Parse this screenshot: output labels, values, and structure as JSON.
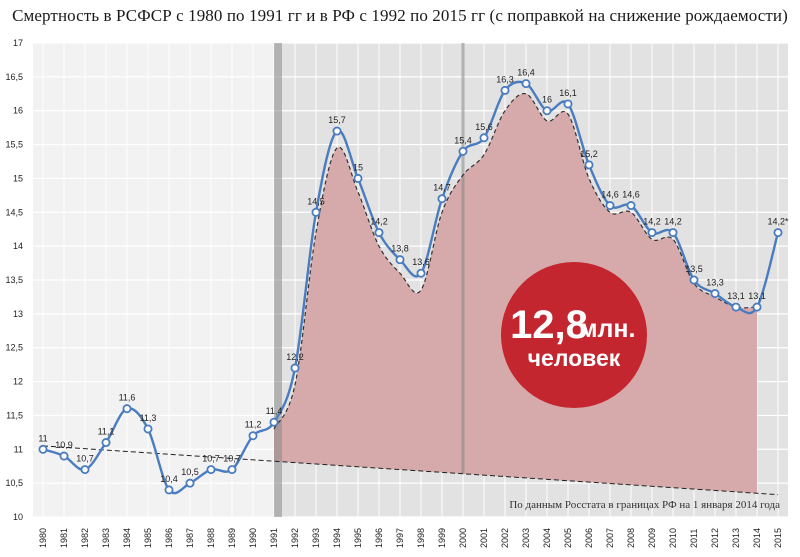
{
  "title": "Смертность в РСФСР с 1980 по 1991 гг и в РФ с 1992 по 2015 гг (с поправкой на снижение рождаемости)",
  "source_note": "По данным Росстата в границах РФ на 1 января 2014 года",
  "badge": {
    "value": "12,8",
    "unit": "млн.",
    "text": "человек",
    "color": "#c3262f"
  },
  "colors": {
    "line": "#4a7cc0",
    "marker_fill": "#ffffff",
    "area_fill": "#d5a5a7",
    "bg_left": "#f2f2f2",
    "bg_right": "#e2e2e2",
    "divider": "#8a8a8a",
    "grid": "#ffffff",
    "trend": "#222222"
  },
  "chart_data": {
    "type": "line",
    "title": "Смертность в РСФСР с 1980 по 1991 гг и в РФ с 1992 по 2015 гг (с поправкой на снижение рождаемости)",
    "xlabel": "",
    "ylabel": "",
    "ylim": [
      10,
      17
    ],
    "yticks": [
      "10",
      "10,5",
      "11",
      "11,5",
      "12",
      "12,5",
      "13",
      "13,5",
      "14",
      "14,5",
      "15",
      "15,5",
      "16",
      "16,5",
      "17"
    ],
    "grid": true,
    "categories": [
      "1980",
      "1981",
      "1982",
      "1983",
      "1984",
      "1985",
      "1986",
      "1987",
      "1988",
      "1989",
      "1990",
      "1991",
      "1992",
      "1993",
      "1994",
      "1995",
      "1996",
      "1997",
      "1998",
      "1999",
      "2000",
      "2001",
      "2002",
      "2003",
      "2004",
      "2005",
      "2006",
      "2007",
      "2008",
      "2009",
      "2010",
      "2011",
      "2012",
      "2013",
      "2014",
      "2015"
    ],
    "series": [
      {
        "values": [
          11,
          10.9,
          10.7,
          11.1,
          11.6,
          11.3,
          10.4,
          10.5,
          10.7,
          10.7,
          11.2,
          11.4,
          12.2,
          14.5,
          15.7,
          15,
          14.2,
          13.8,
          13.6,
          14.7,
          15.4,
          15.6,
          16.3,
          16.4,
          16,
          16.1,
          15.2,
          14.6,
          14.6,
          14.2,
          14.2,
          13.5,
          13.3,
          13.1,
          13.1,
          14.2
        ],
        "labels": [
          "11",
          "10,9",
          "10,7",
          "11,1",
          "11,6",
          "11,3",
          "10,4",
          "10,5",
          "10,7",
          "10,7",
          "11,2",
          "11,4",
          "12,2",
          "14,5",
          "15,7",
          "15",
          "14,2",
          "13,8",
          "13,6",
          "14,7",
          "15,4",
          "15,6",
          "16,3",
          "16,4",
          "16",
          "16,1",
          "15,2",
          "14,6",
          "14,6",
          "14,2",
          "14,2",
          "13,5",
          "13,3",
          "13,1",
          "13,1",
          "14,2*"
        ]
      },
      {
        "x": [
          "1991",
          "1992",
          "1993",
          "1994",
          "1995",
          "1996",
          "1997",
          "1998",
          "1999",
          "2000",
          "2001",
          "2002",
          "2003",
          "2004",
          "2005",
          "2006",
          "2007",
          "2008",
          "2009",
          "2010",
          "2011",
          "2012",
          "2013",
          "2014"
        ],
        "values": [
          11.3,
          11.95,
          14.2,
          15.45,
          14.8,
          14.0,
          13.6,
          13.35,
          14.5,
          15.05,
          15.35,
          16.0,
          16.25,
          15.85,
          15.95,
          15.0,
          14.5,
          14.5,
          14.1,
          14.1,
          13.45,
          13.25,
          13.1,
          13.1
        ]
      }
    ],
    "trend": {
      "x": [
        "1980",
        "2015"
      ],
      "values": [
        11.05,
        10.33
      ]
    },
    "shaded_period": [
      "1991",
      "2014"
    ]
  }
}
